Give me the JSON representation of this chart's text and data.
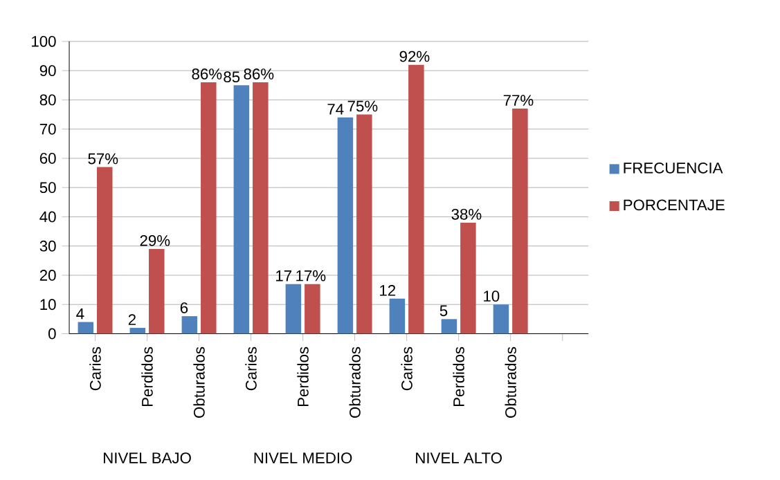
{
  "chart_data": {
    "type": "bar",
    "categories": [
      "Caries",
      "Perdidos",
      "Obturados",
      "Caries",
      "Perdidos",
      "Obturados",
      "Caries",
      "Perdidos",
      "Obturados",
      null
    ],
    "series": [
      {
        "name": "FRECUENCIA",
        "color": "#4f81bd",
        "values": [
          4,
          2,
          6,
          85,
          17,
          74,
          12,
          5,
          10,
          null
        ],
        "value_labels": [
          "4",
          "2",
          "6",
          "85",
          "17",
          "74",
          "12",
          "5",
          "10",
          null
        ]
      },
      {
        "name": "PORCENTAJE",
        "color": "#c0504d",
        "values": [
          57,
          29,
          86,
          86,
          17,
          75,
          92,
          38,
          77,
          null
        ],
        "value_labels": [
          "57%",
          "29%",
          "86%",
          "86%",
          "17%",
          "75%",
          "92%",
          "38%",
          "77%",
          null
        ]
      }
    ],
    "annotations": [
      "NIVEL BAJO",
      "NIVEL MEDIO",
      "NIVEL ALTO"
    ],
    "ylim": [
      0,
      100
    ],
    "yticks": [
      0,
      10,
      20,
      30,
      40,
      50,
      60,
      70,
      80,
      90,
      100
    ],
    "grid": "y",
    "legend": "right"
  }
}
